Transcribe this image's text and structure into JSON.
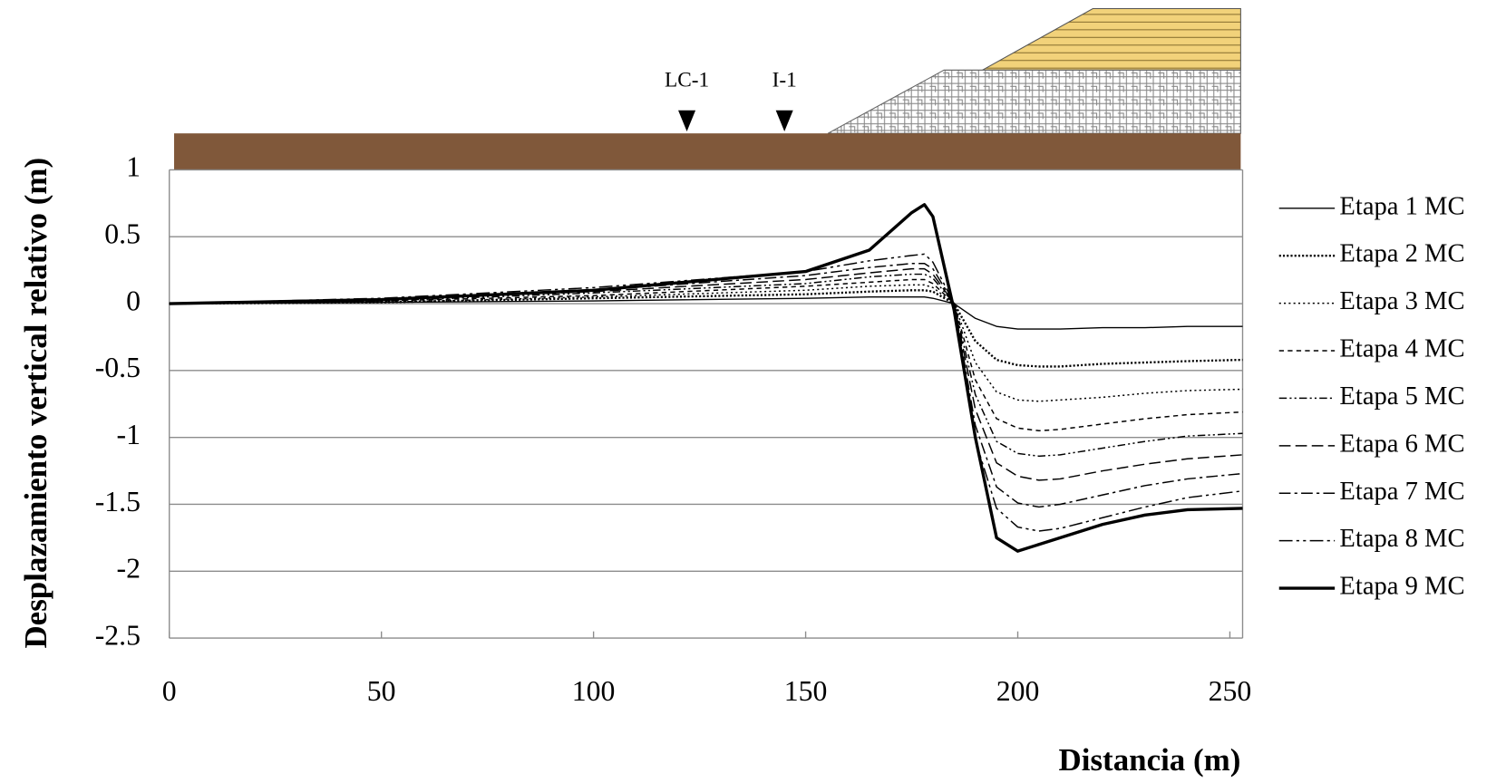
{
  "chart_data": {
    "type": "line",
    "x_label": "Distancia (m)",
    "y_label": "Desplazamiento vertical relativo (m)",
    "x": [
      0,
      50,
      100,
      150,
      165,
      175,
      178,
      180,
      185,
      190,
      195,
      200,
      205,
      210,
      220,
      230,
      240,
      253
    ],
    "series": [
      {
        "name": "Etapa 1 MC",
        "color": "#000000",
        "dash": "",
        "width": 1.3,
        "values": [
          0,
          0.01,
          0.02,
          0.04,
          0.05,
          0.05,
          0.05,
          0.04,
          0,
          -0.11,
          -0.17,
          -0.19,
          -0.19,
          -0.19,
          -0.18,
          -0.18,
          -0.17,
          -0.17
        ]
      },
      {
        "name": "Etapa 2 MC",
        "color": "#000000",
        "dash": "2,2",
        "width": 2.2,
        "values": [
          0,
          0.01,
          0.04,
          0.07,
          0.09,
          0.1,
          0.1,
          0.09,
          0,
          -0.28,
          -0.42,
          -0.46,
          -0.47,
          -0.47,
          -0.45,
          -0.44,
          -0.43,
          -0.42
        ]
      },
      {
        "name": "Etapa 3 MC",
        "color": "#000000",
        "dash": "2,3",
        "width": 1.4,
        "values": [
          0,
          0.01,
          0.05,
          0.1,
          0.13,
          0.14,
          0.14,
          0.12,
          0,
          -0.44,
          -0.66,
          -0.72,
          -0.73,
          -0.72,
          -0.7,
          -0.67,
          -0.65,
          -0.64
        ]
      },
      {
        "name": "Etapa 4 MC",
        "color": "#000000",
        "dash": "5,4",
        "width": 1.4,
        "values": [
          0,
          0.02,
          0.06,
          0.13,
          0.16,
          0.18,
          0.18,
          0.15,
          0,
          -0.57,
          -0.86,
          -0.93,
          -0.95,
          -0.94,
          -0.9,
          -0.86,
          -0.83,
          -0.81
        ]
      },
      {
        "name": "Etapa 5 MC",
        "color": "#000000",
        "dash": "8,3,2,3,2,3",
        "width": 1.4,
        "values": [
          0,
          0.02,
          0.08,
          0.15,
          0.2,
          0.22,
          0.22,
          0.19,
          0,
          -0.68,
          -1.03,
          -1.12,
          -1.14,
          -1.13,
          -1.08,
          -1.03,
          -0.99,
          -0.97
        ]
      },
      {
        "name": "Etapa 6 MC",
        "color": "#000000",
        "dash": "12,5",
        "width": 1.4,
        "values": [
          0,
          0.03,
          0.09,
          0.18,
          0.23,
          0.26,
          0.26,
          0.22,
          0,
          -0.79,
          -1.19,
          -1.29,
          -1.32,
          -1.31,
          -1.25,
          -1.2,
          -1.16,
          -1.13
        ]
      },
      {
        "name": "Etapa 7 MC",
        "color": "#000000",
        "dash": "12,4,3,4",
        "width": 1.4,
        "values": [
          0,
          0.03,
          0.1,
          0.21,
          0.27,
          0.3,
          0.3,
          0.26,
          0,
          -0.91,
          -1.37,
          -1.49,
          -1.52,
          -1.5,
          -1.43,
          -1.36,
          -1.31,
          -1.27
        ]
      },
      {
        "name": "Etapa 8 MC",
        "color": "#000000",
        "dash": "14,4,3,4,3,4",
        "width": 1.4,
        "values": [
          0,
          0.04,
          0.12,
          0.24,
          0.32,
          0.36,
          0.37,
          0.31,
          0,
          -1.02,
          -1.53,
          -1.67,
          -1.7,
          -1.68,
          -1.6,
          -1.52,
          -1.45,
          -1.4
        ]
      },
      {
        "name": "Etapa 9 MC",
        "color": "#000000",
        "dash": "",
        "width": 3.2,
        "values": [
          0,
          0.03,
          0.1,
          0.24,
          0.4,
          0.68,
          0.74,
          0.65,
          -0.05,
          -1.0,
          -1.75,
          -1.85,
          -1.8,
          -1.75,
          -1.65,
          -1.58,
          -1.54,
          -1.53
        ]
      }
    ],
    "xlim": [
      0,
      253
    ],
    "xticks": [
      0,
      50,
      100,
      150,
      200,
      250
    ],
    "ylim": [
      -2.5,
      1
    ],
    "yticks": [
      1,
      0.5,
      0,
      -0.5,
      -1,
      -1.5,
      -2,
      -2.5
    ],
    "grid": true,
    "legend": "right",
    "annotations": [
      {
        "label": "LC-1",
        "x": 122
      },
      {
        "label": "I-1",
        "x": 145
      }
    ]
  }
}
